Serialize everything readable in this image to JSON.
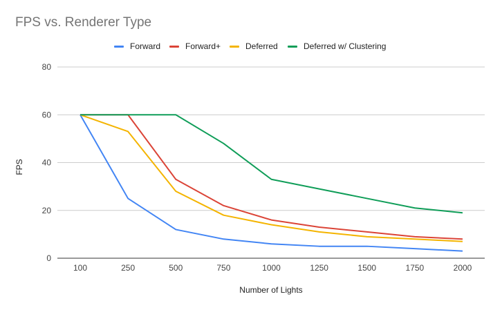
{
  "chart_data": {
    "type": "line",
    "title": "FPS vs. Renderer Type",
    "xlabel": "Number of Lights",
    "ylabel": "FPS",
    "categories": [
      "100",
      "250",
      "500",
      "750",
      "1000",
      "1250",
      "1500",
      "1750",
      "2000"
    ],
    "ylim": [
      0,
      80
    ],
    "yticks": [
      "0",
      "20",
      "40",
      "60",
      "80"
    ],
    "grid": true,
    "legend_position": "top",
    "series": [
      {
        "name": "Forward",
        "color": "#4285f4",
        "values": [
          60,
          25,
          12,
          8,
          6,
          5,
          5,
          4,
          3
        ]
      },
      {
        "name": "Forward+",
        "color": "#db4437",
        "values": [
          60,
          60,
          33,
          22,
          16,
          13,
          11,
          9,
          8
        ]
      },
      {
        "name": "Deferred",
        "color": "#f4b400",
        "values": [
          60,
          53,
          28,
          18,
          14,
          11,
          9,
          8,
          7
        ]
      },
      {
        "name": "Deferred w/ Clustering",
        "color": "#0f9d58",
        "values": [
          60,
          60,
          60,
          48,
          33,
          29,
          25,
          21,
          19
        ]
      }
    ]
  }
}
